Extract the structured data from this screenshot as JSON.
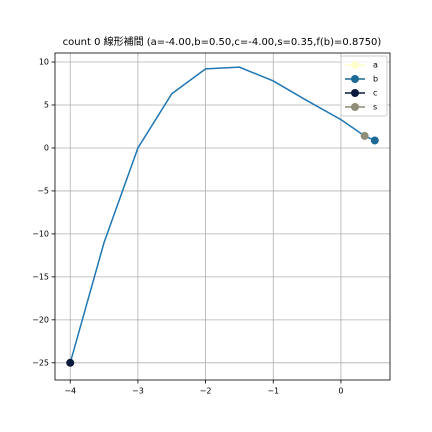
{
  "chart_data": {
    "type": "line",
    "title": "count 0 線形補間 (a=-4.00,b=0.50,c=-4.00,s=0.35,f(b)=0.8750)",
    "line": {
      "color": "#1f77b4",
      "x": [
        -4,
        -3.5,
        -3,
        -2.5,
        -2,
        -1.5,
        -1,
        -0.5,
        0,
        0.35,
        0.5
      ],
      "values": [
        -25,
        -11,
        0,
        6.3,
        9.2,
        9.4,
        7.8,
        5.5,
        3.3,
        1.4,
        0.875
      ]
    },
    "points": [
      {
        "name": "a",
        "color": "#ffffcc",
        "x": -4,
        "value": -25
      },
      {
        "name": "b",
        "color": "#1d6996",
        "x": 0.5,
        "value": 0.875
      },
      {
        "name": "c",
        "color": "#0b1a3a",
        "x": -4,
        "value": -25
      },
      {
        "name": "s",
        "color": "#8f8c78",
        "x": 0.35,
        "value": 1.4
      }
    ],
    "xlim": [
      -4.225,
      0.725
    ],
    "ylim": [
      -27,
      11.05
    ],
    "xticks": [
      {
        "value": -4,
        "label": "−4"
      },
      {
        "value": -3,
        "label": "−3"
      },
      {
        "value": -2,
        "label": "−2"
      },
      {
        "value": -1,
        "label": "−1"
      },
      0
    ],
    "yticks": [
      {
        "value": -25,
        "label": "−25"
      },
      {
        "value": -20,
        "label": "−20"
      },
      {
        "value": -15,
        "label": "−15"
      },
      {
        "value": -10,
        "label": "−10"
      },
      {
        "value": -5,
        "label": "−5"
      },
      0,
      5,
      10
    ],
    "grid": true,
    "legend": "upper right"
  }
}
